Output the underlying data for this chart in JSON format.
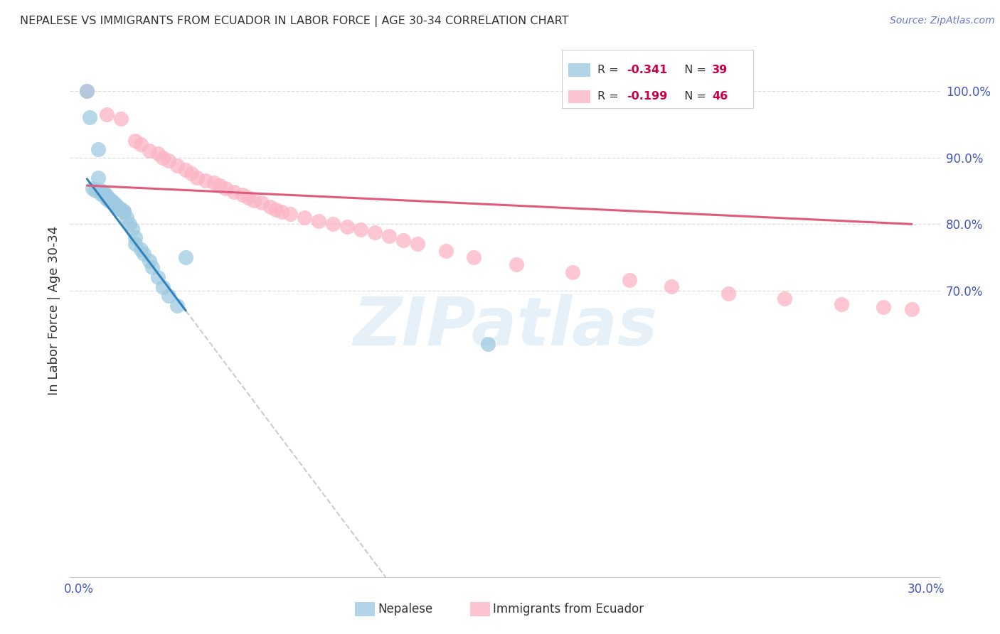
{
  "title": "NEPALESE VS IMMIGRANTS FROM ECUADOR IN LABOR FORCE | AGE 30-34 CORRELATION CHART",
  "source": "Source: ZipAtlas.com",
  "ylabel": "In Labor Force | Age 30-34",
  "xlim": [
    -0.003,
    0.305
  ],
  "ylim": [
    0.27,
    1.07
  ],
  "xtick_positions": [
    0.0,
    0.05,
    0.1,
    0.15,
    0.2,
    0.25,
    0.3
  ],
  "xtick_labels": [
    "0.0%",
    "",
    "",
    "",
    "",
    "",
    "30.0%"
  ],
  "ytick_positions": [
    0.7,
    0.8,
    0.9,
    1.0
  ],
  "ytick_labels": [
    "70.0%",
    "80.0%",
    "90.0%",
    "100.0%"
  ],
  "legend_r1": "R = -0.341",
  "legend_n1": "N = 39",
  "legend_r2": "R = -0.199",
  "legend_n2": "N = 46",
  "blue_scatter_color": "#9ecae1",
  "pink_scatter_color": "#fbb4c4",
  "blue_line_color": "#3182bd",
  "pink_line_color": "#e05a7a",
  "axis_label_color": "#4455bb",
  "text_color": "#333333",
  "source_color": "#6677cc",
  "watermark": "ZIPatlas",
  "nepalese_x": [
    0.003,
    0.004,
    0.005,
    0.006,
    0.007,
    0.007,
    0.008,
    0.008,
    0.009,
    0.009,
    0.01,
    0.01,
    0.01,
    0.011,
    0.011,
    0.012,
    0.012,
    0.013,
    0.013,
    0.014,
    0.014,
    0.015,
    0.016,
    0.016,
    0.017,
    0.018,
    0.019,
    0.02,
    0.02,
    0.022,
    0.023,
    0.025,
    0.026,
    0.028,
    0.03,
    0.032,
    0.035,
    0.038,
    0.145
  ],
  "nepalese_y": [
    1.0,
    0.96,
    0.854,
    0.85,
    0.912,
    0.87,
    0.85,
    0.845,
    0.848,
    0.843,
    0.843,
    0.84,
    0.838,
    0.838,
    0.835,
    0.835,
    0.832,
    0.83,
    0.828,
    0.826,
    0.823,
    0.823,
    0.82,
    0.818,
    0.81,
    0.8,
    0.793,
    0.78,
    0.77,
    0.762,
    0.755,
    0.745,
    0.735,
    0.72,
    0.705,
    0.692,
    0.678,
    0.75,
    0.62
  ],
  "ecuador_x": [
    0.003,
    0.01,
    0.015,
    0.02,
    0.022,
    0.025,
    0.028,
    0.03,
    0.032,
    0.035,
    0.038,
    0.04,
    0.042,
    0.045,
    0.048,
    0.05,
    0.052,
    0.055,
    0.058,
    0.06,
    0.062,
    0.065,
    0.068,
    0.07,
    0.072,
    0.075,
    0.08,
    0.085,
    0.09,
    0.095,
    0.1,
    0.105,
    0.11,
    0.115,
    0.12,
    0.13,
    0.14,
    0.155,
    0.175,
    0.195,
    0.21,
    0.23,
    0.25,
    0.27,
    0.285,
    0.295
  ],
  "ecuador_y": [
    1.0,
    0.965,
    0.958,
    0.925,
    0.92,
    0.91,
    0.906,
    0.9,
    0.895,
    0.888,
    0.882,
    0.876,
    0.87,
    0.866,
    0.862,
    0.858,
    0.854,
    0.848,
    0.844,
    0.84,
    0.836,
    0.832,
    0.826,
    0.822,
    0.818,
    0.815,
    0.81,
    0.805,
    0.8,
    0.796,
    0.792,
    0.787,
    0.782,
    0.776,
    0.77,
    0.76,
    0.75,
    0.74,
    0.728,
    0.716,
    0.706,
    0.696,
    0.688,
    0.68,
    0.675,
    0.672
  ]
}
